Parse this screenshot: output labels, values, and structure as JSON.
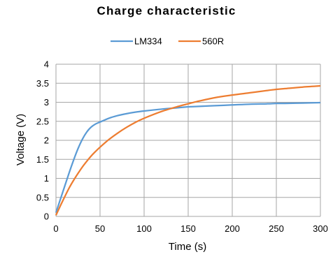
{
  "chart_data": {
    "type": "line",
    "title": "Charge characteristic",
    "xlabel": "Time (s)",
    "ylabel": "Voltage (V)",
    "xlim": [
      0,
      300
    ],
    "ylim": [
      0,
      4
    ],
    "xticks": [
      0,
      50,
      100,
      150,
      200,
      250,
      300
    ],
    "yticks": [
      0,
      0.5,
      1,
      1.5,
      2,
      2.5,
      3,
      3.5,
      4
    ],
    "xtick_labels": [
      "0",
      "50",
      "100",
      "150",
      "200",
      "250",
      "300"
    ],
    "ytick_labels": [
      "0",
      "0.5",
      "1",
      "1.5",
      "2",
      "2.5",
      "3",
      "3.5",
      "4"
    ],
    "grid": true,
    "legend_position": "top-center",
    "x": [
      0,
      5,
      10,
      15,
      20,
      25,
      30,
      35,
      40,
      45,
      50,
      60,
      70,
      80,
      90,
      100,
      120,
      140,
      150,
      160,
      180,
      200,
      220,
      240,
      250,
      260,
      280,
      300
    ],
    "series": [
      {
        "name": "LM334",
        "color": "#5b9bd5",
        "values": [
          0.1,
          0.45,
          0.8,
          1.15,
          1.48,
          1.78,
          2.03,
          2.22,
          2.35,
          2.43,
          2.48,
          2.58,
          2.65,
          2.7,
          2.74,
          2.77,
          2.82,
          2.86,
          2.88,
          2.89,
          2.91,
          2.93,
          2.95,
          2.96,
          2.97,
          2.97,
          2.98,
          2.99
        ]
      },
      {
        "name": "560R",
        "color": "#ed7d31",
        "values": [
          0.03,
          0.28,
          0.52,
          0.75,
          0.95,
          1.13,
          1.3,
          1.45,
          1.59,
          1.71,
          1.82,
          2.02,
          2.19,
          2.34,
          2.47,
          2.58,
          2.76,
          2.9,
          2.96,
          3.02,
          3.12,
          3.19,
          3.25,
          3.31,
          3.34,
          3.36,
          3.4,
          3.43
        ]
      }
    ]
  }
}
